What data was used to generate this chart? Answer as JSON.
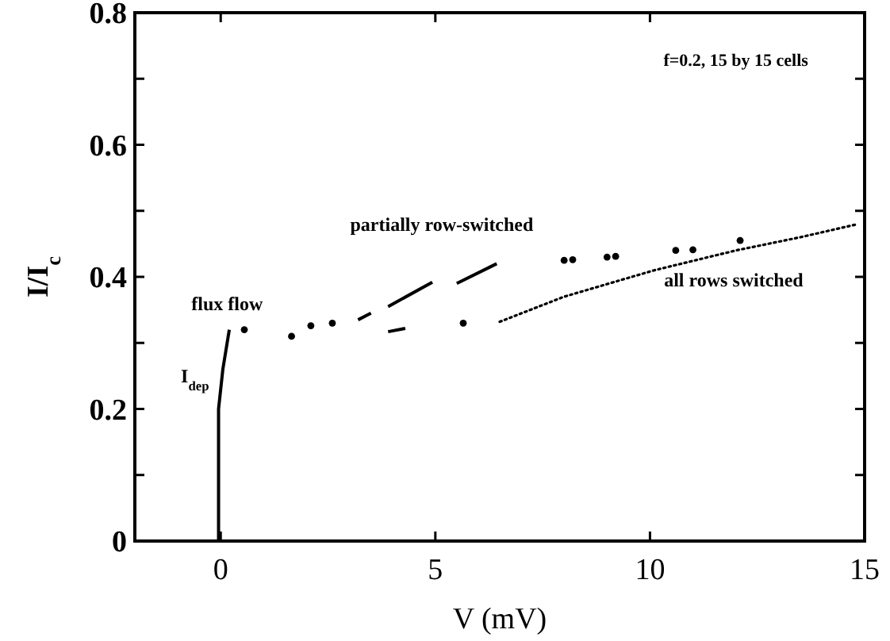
{
  "chart_data": {
    "type": "line",
    "xlabel": "V (mV)",
    "ylabel": "I/I$_{c}$",
    "xlim": [
      -2,
      15
    ],
    "ylim": [
      0,
      0.8
    ],
    "xticks": [
      0,
      5,
      10,
      15
    ],
    "yticks": [
      0,
      {
        "value": 0.1,
        "label": null
      },
      0.2,
      {
        "value": 0.3,
        "label": null
      },
      0.4,
      {
        "value": 0.5,
        "label": null
      },
      0.6,
      {
        "value": 0.7,
        "label": null
      },
      0.8
    ],
    "grid": false,
    "series": [
      {
        "line_style": "solid",
        "color": "#000000",
        "x": [
          -0.05,
          -0.05,
          0.05,
          0.2
        ],
        "values": [
          0,
          0.2,
          0.26,
          0.32
        ]
      },
      {
        "line_style": "solid",
        "color": "#000000",
        "x": [
          3.2,
          3.5,
          null,
          3.9,
          4.93,
          null,
          5.5,
          6.43,
          null,
          3.9,
          4.3
        ],
        "values": [
          0.335,
          0.345,
          null,
          0.355,
          0.392,
          null,
          0.39,
          0.42,
          null,
          0.317,
          0.322
        ]
      },
      {
        "type": "scatter",
        "marker": "circle",
        "color": "#000000",
        "x": [
          0.55,
          1.65,
          2.1,
          2.6,
          5.65,
          8.0,
          8.2,
          9.0,
          9.2,
          10.6,
          11.0,
          12.1
        ],
        "values": [
          0.32,
          0.31,
          0.326,
          0.33,
          0.33,
          0.425,
          0.426,
          0.43,
          0.431,
          0.44,
          0.441,
          0.455
        ]
      },
      {
        "line_style": "dotted",
        "color": "#000000",
        "x": [
          6.5,
          8.0,
          10.1,
          12.0,
          13.5,
          14.85
        ],
        "values": [
          0.332,
          0.37,
          0.41,
          0.44,
          0.46,
          0.48
        ]
      }
    ],
    "annotations": [
      "f=0.2, 15 by 15 cells",
      "partially row-switched",
      "flux flow",
      "I$_{dep}$",
      "all rows switched"
    ]
  }
}
